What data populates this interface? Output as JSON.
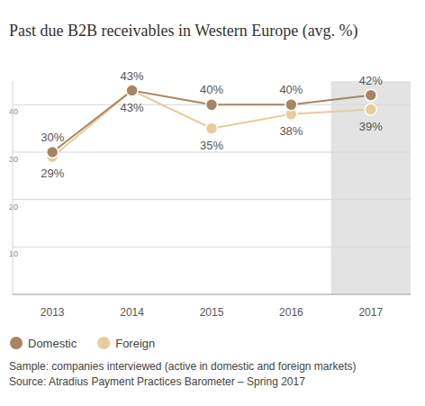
{
  "chart_data": {
    "type": "line",
    "title": "Past due B2B receivables in Western Europe (avg. %)",
    "categories": [
      "2013",
      "2014",
      "2015",
      "2016",
      "2017"
    ],
    "series": [
      {
        "name": "Domestic",
        "color": "#a98462",
        "values": [
          30,
          43,
          40,
          40,
          42
        ],
        "value_labels": [
          "30%",
          "43%",
          "40%",
          "40%",
          "42%"
        ]
      },
      {
        "name": "Foreign",
        "color": "#e8cc9a",
        "values": [
          29,
          43,
          35,
          38,
          39
        ],
        "value_labels": [
          "29%",
          "43%",
          "35%",
          "38%",
          "39%"
        ]
      }
    ],
    "ylim": [
      0,
      45
    ],
    "yticks": [
      10,
      20,
      30,
      40
    ],
    "grid": true,
    "legend": "bottom-left",
    "data_labels": true,
    "marker": "circle",
    "annotations": [
      "Sample: companies interviewed (active in domestic and foreign markets)",
      "Source: Atradius Payment Practices Barometer – Spring 2017"
    ]
  }
}
